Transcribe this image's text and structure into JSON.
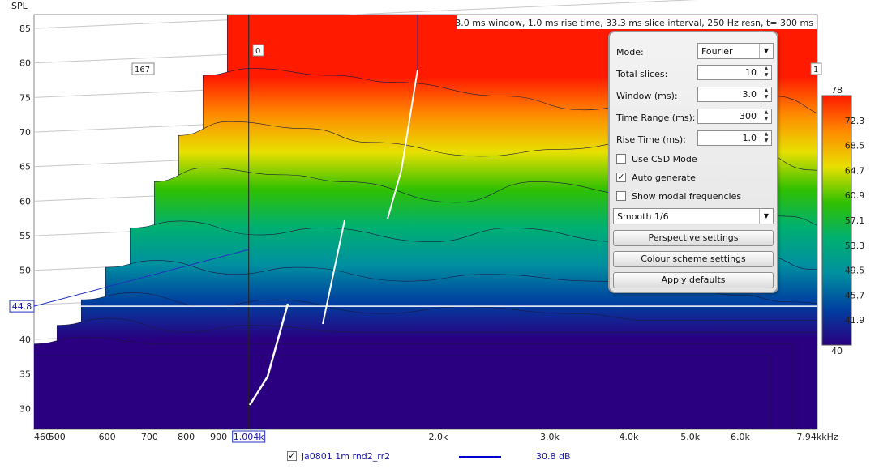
{
  "chart_data": {
    "type": "area",
    "subtype": "cumulative spectral decay (waterfall)",
    "title": "3.0 ms window, 1.0 ms rise time, 33.3 ms slice interval, 250 Hz resn, t= 300 ms",
    "ylabel": "SPL",
    "xlabel": "",
    "x_unit": "kHz",
    "x_scale": "log",
    "xlim": [
      460,
      7940
    ],
    "ylim": [
      27,
      87
    ],
    "x_ticks": [
      "460",
      "500",
      "600",
      "700",
      "800",
      "900",
      "1.004k",
      "2.0k",
      "3.0k",
      "4.0k",
      "5.0k",
      "6.0k",
      "7.94k"
    ],
    "y_ticks": [
      30,
      35,
      40,
      45,
      50,
      55,
      60,
      65,
      70,
      75,
      80,
      85
    ],
    "cursor": {
      "x_label": "1.004k",
      "y_label": "44.8"
    },
    "depth_labels": [
      "167",
      "0",
      "1"
    ],
    "slice_count": 10,
    "slices": [
      {
        "time_ms": 0,
        "x": [
          500,
          550,
          700,
          900,
          1004,
          1500,
          2000,
          3000,
          4000,
          5000,
          6000,
          7000,
          7940
        ],
        "y": [
          76,
          78,
          79,
          79.5,
          79.5,
          79.7,
          79,
          78.5,
          78.5,
          77,
          74,
          70,
          68
        ]
      },
      {
        "time_ms": 33,
        "x": [
          500,
          600,
          800,
          1004,
          1500,
          2000,
          3000,
          4000,
          5000,
          6000,
          7940
        ],
        "y": [
          67,
          68,
          67,
          66,
          64,
          62,
          66,
          64,
          61,
          60,
          57
        ]
      },
      {
        "time_ms": 67,
        "x": [
          500,
          600,
          800,
          1004,
          1500,
          2000,
          3000,
          4000,
          5000,
          6000,
          7940
        ],
        "y": [
          60,
          62,
          61,
          59,
          57,
          58,
          60,
          58,
          55,
          53,
          50
        ]
      },
      {
        "time_ms": 100,
        "x": [
          500,
          600,
          800,
          1004,
          1500,
          2000,
          3000,
          4000,
          5000,
          6000,
          7940
        ],
        "y": [
          55,
          57,
          56,
          55,
          52,
          55,
          53,
          51,
          50,
          48,
          46
        ]
      },
      {
        "time_ms": 133,
        "x": [
          500,
          600,
          800,
          1004,
          1500,
          2000,
          3000,
          4000,
          5000,
          6000,
          7940
        ],
        "y": [
          50,
          51,
          49,
          50,
          48,
          50,
          48,
          47,
          46,
          44,
          43
        ]
      },
      {
        "time_ms": 167,
        "x": [
          500,
          600,
          800,
          1004,
          1500,
          2000,
          3000,
          4000,
          5000,
          6000,
          7940
        ],
        "y": [
          46,
          47,
          45,
          46,
          44,
          45,
          44,
          43,
          42,
          41,
          40
        ]
      },
      {
        "time_ms": 200,
        "x": [
          500,
          600,
          800,
          1004,
          1500,
          2000,
          3000,
          4000,
          5000,
          6000,
          7940
        ],
        "y": [
          43,
          44,
          42,
          43,
          41,
          42,
          41,
          40,
          40,
          40,
          40
        ]
      },
      {
        "time_ms": 233,
        "x": [
          500,
          600,
          800,
          1004,
          1500,
          2000,
          3000,
          4000,
          5000,
          6000,
          7940
        ],
        "y": [
          41,
          42,
          40,
          41,
          40,
          40,
          40,
          40,
          40,
          40,
          40
        ]
      },
      {
        "time_ms": 267,
        "x": [
          500,
          600,
          800,
          1004,
          1500,
          2000,
          3000,
          4000,
          5000,
          6000,
          7940
        ],
        "y": [
          40,
          41,
          40,
          40,
          40,
          40,
          40,
          40,
          40,
          40,
          40
        ]
      },
      {
        "time_ms": 300,
        "x": [
          500,
          600,
          800,
          1004,
          1500,
          2000,
          3000,
          4000,
          5000,
          6000,
          7940
        ],
        "y": [
          40,
          40,
          40,
          40,
          40,
          40,
          40,
          40,
          40,
          40,
          40
        ]
      }
    ],
    "colorbar": {
      "ticks": [
        "78",
        "72.3",
        "68.5",
        "64.7",
        "60.9",
        "57.1",
        "53.3",
        "49.5",
        "45.7",
        "41.9",
        "40"
      ],
      "stops": [
        "#ff1a00",
        "#ff8a00",
        "#e8e000",
        "#30c000",
        "#00b070",
        "#0090a0",
        "#0040a0",
        "#2a0080"
      ]
    },
    "legend": [
      {
        "checked": true,
        "name": "ja0801 1m rnd2_rr2",
        "value": "30.8 dB",
        "color": "#0000cc"
      }
    ]
  },
  "panel": {
    "mode_label": "Mode:",
    "mode_value": "Fourier",
    "total_slices_label": "Total slices:",
    "total_slices_value": "10",
    "window_label": "Window (ms):",
    "window_value": "3.0",
    "time_range_label": "Time Range (ms):",
    "time_range_value": "300",
    "rise_time_label": "Rise Time (ms):",
    "rise_time_value": "1.0",
    "use_csd_label": "Use CSD Mode",
    "use_csd_checked": false,
    "auto_generate_label": "Auto generate",
    "auto_generate_checked": true,
    "show_modal_label": "Show modal frequencies",
    "show_modal_checked": false,
    "smoothing_value": "Smooth 1/6",
    "perspective_button": "Perspective settings",
    "colour_scheme_button": "Colour scheme settings",
    "apply_defaults_button": "Apply defaults"
  }
}
